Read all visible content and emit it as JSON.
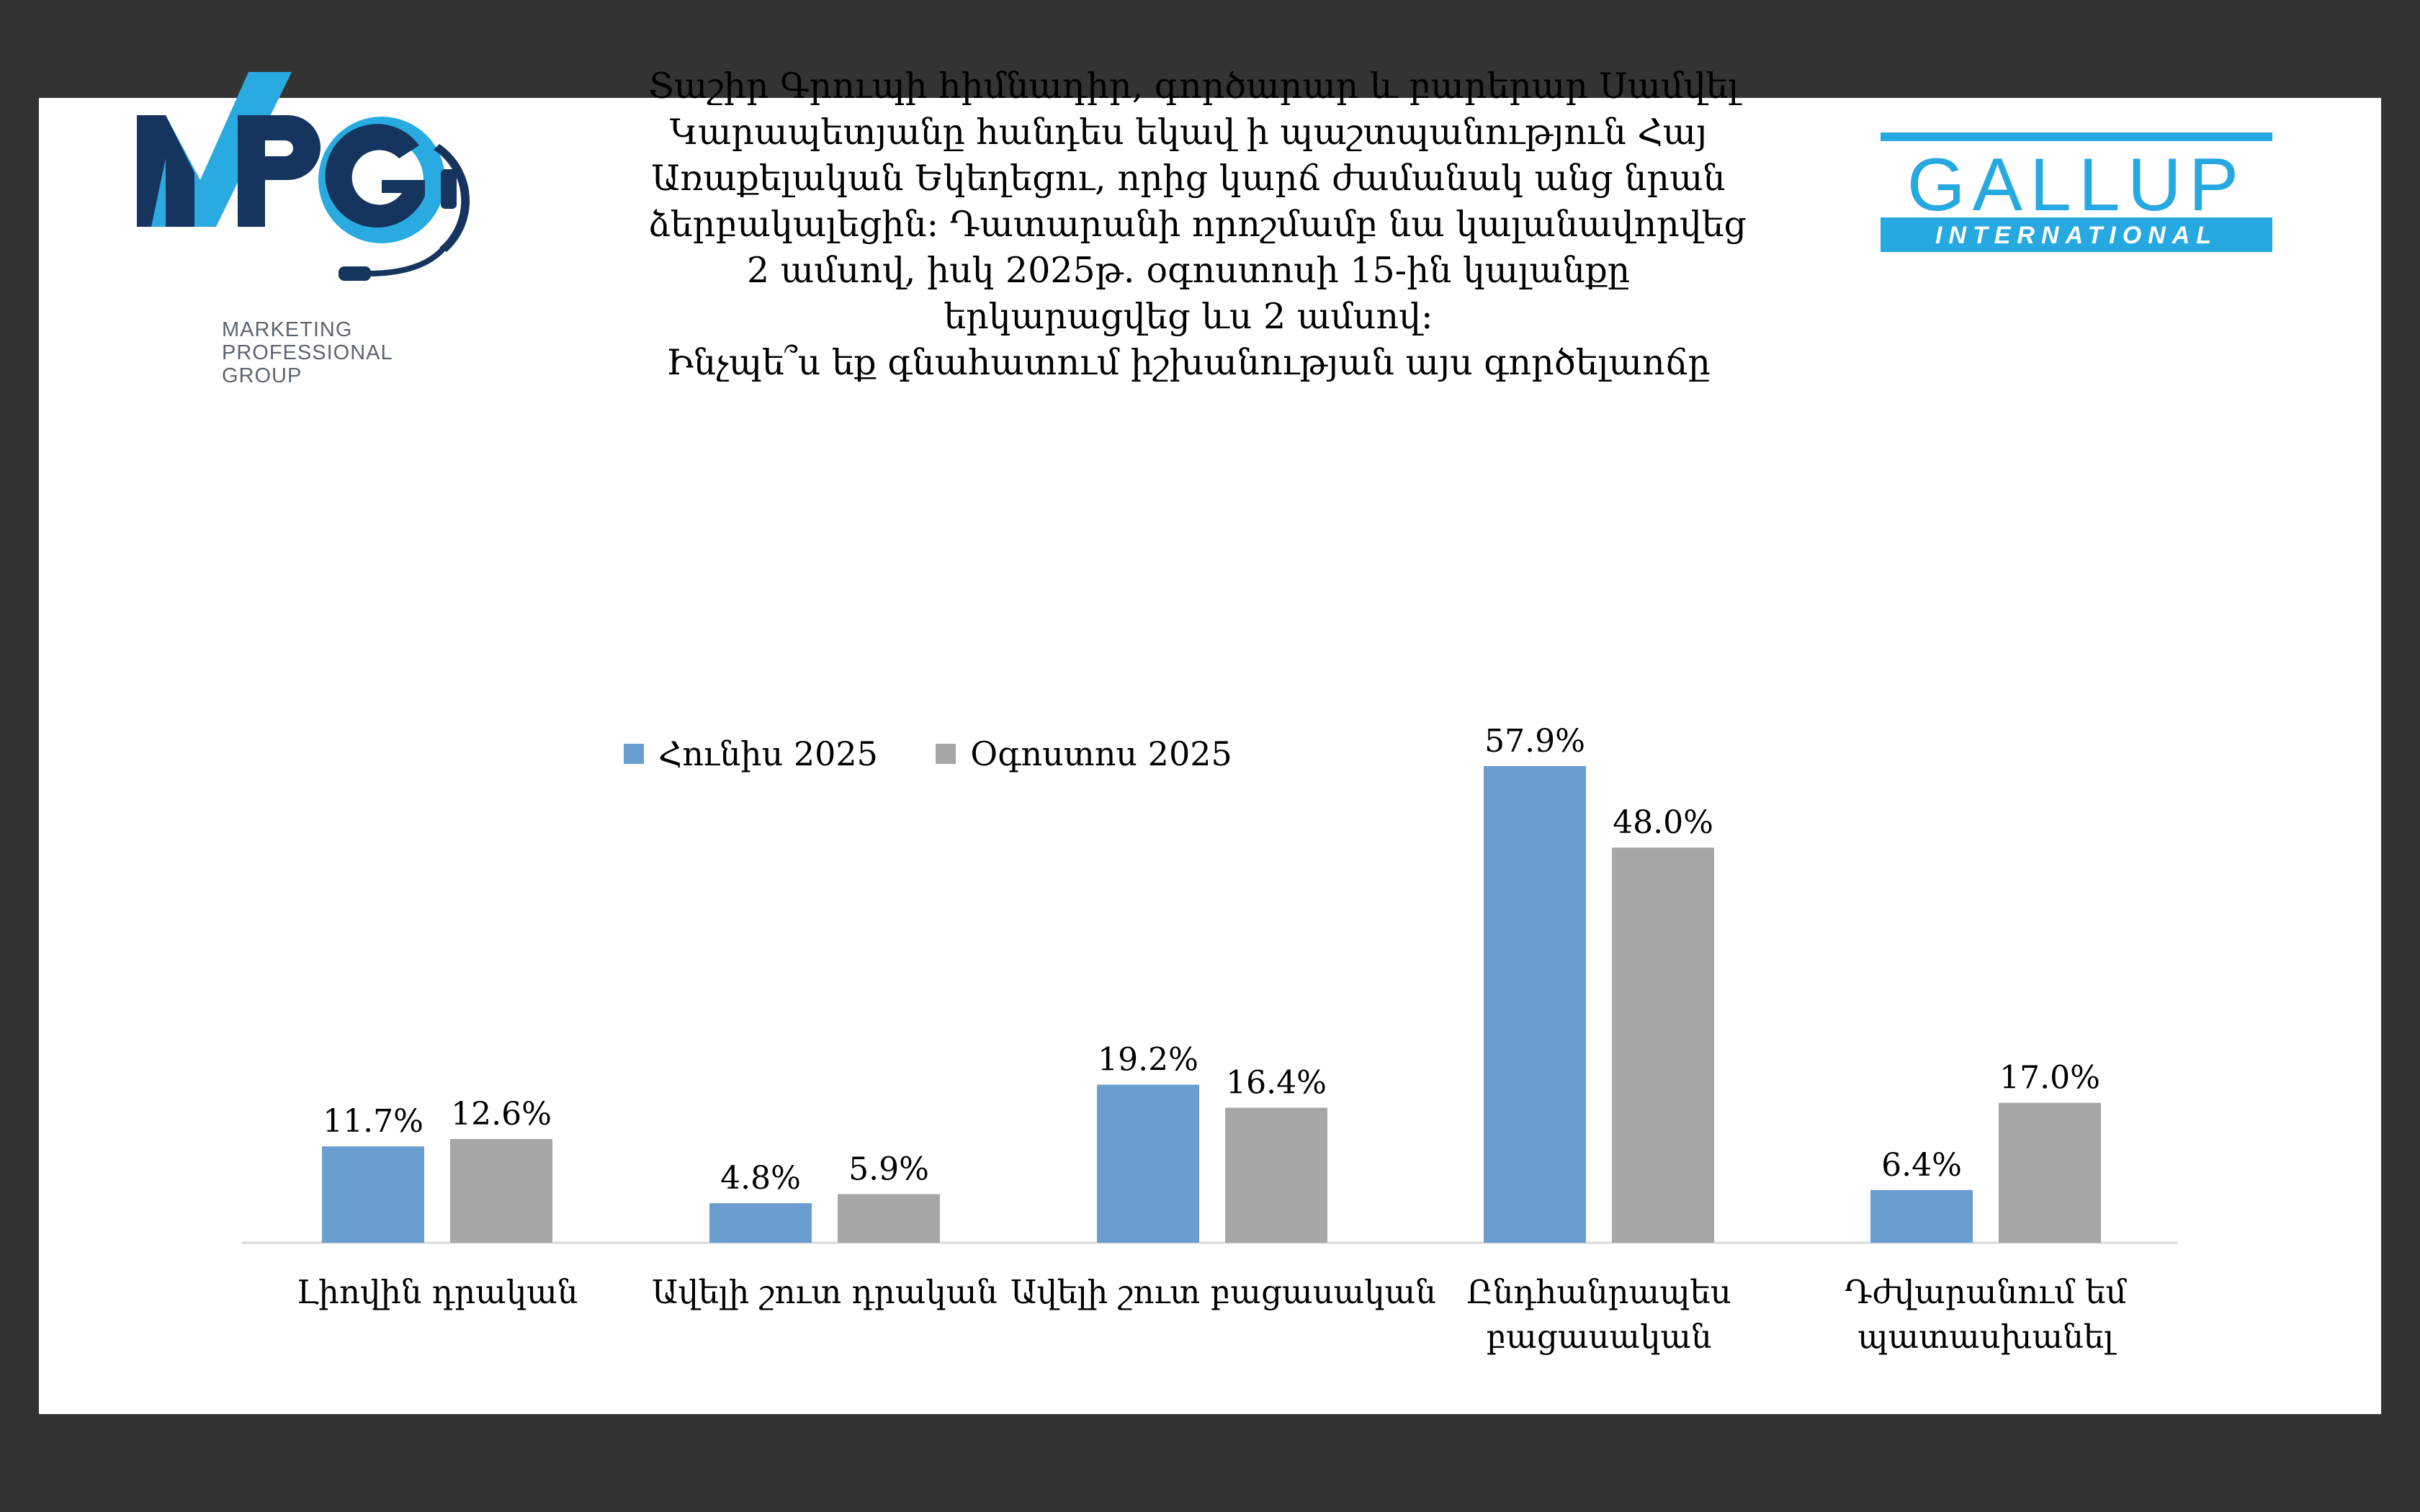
{
  "title_lines": [
    "Տաշիր Գրուպի հիմնադիր, գործարար և բարերար Սամվել",
    "Կարապետյանը հանդես եկավ ի պաշտպանություն Հայ",
    "Առաքելական Եկեղեցու, որից կարճ ժամանակ անց նրան",
    "ձերբակալեցին։ Դատարանի որոշմամբ նա կալանավորվեց",
    "2 ամսով, իսկ 2025թ․ օգոստոսի 15-ին կալանքը",
    "երկարացվեց ևս 2 ամսով։",
    "Ինչպե՞ս եք գնահատում իշխանության այս գործելաոճը"
  ],
  "logos": {
    "mpg": {
      "mark": "MPG",
      "sub": [
        "MARKETING",
        "PROFESSIONAL",
        "GROUP"
      ]
    },
    "gallup": {
      "main": "GALLUP",
      "sub": "INTERNATIONAL"
    }
  },
  "colors": {
    "series1": "#6a9dd0",
    "series2": "#a6a6a6",
    "mpg_dark": "#16355e",
    "mpg_light": "#29aae1",
    "gallup": "#26a9e0"
  },
  "chart_data": {
    "type": "bar",
    "categories": [
      [
        "Լիովին դրական"
      ],
      [
        "Ավելի շուտ դրական"
      ],
      [
        "Ավելի շուտ բացասական"
      ],
      [
        "Ընդհանրապես",
        "բացասական"
      ],
      [
        "Դժվարանում եմ",
        "պատասխանել"
      ]
    ],
    "series": [
      {
        "name": "Հունիս 2025",
        "values": [
          11.7,
          4.8,
          19.2,
          57.9,
          6.4
        ],
        "labels": [
          "11.7%",
          "4.8%",
          "19.2%",
          "57.9%",
          "6.4%"
        ]
      },
      {
        "name": "Օգոստոս 2025",
        "values": [
          12.6,
          5.9,
          16.4,
          48.0,
          17.0
        ],
        "labels": [
          "12.6%",
          "5.9%",
          "16.4%",
          "48.0%",
          "17.0%"
        ]
      }
    ],
    "grid": false,
    "legend": "top-left"
  }
}
